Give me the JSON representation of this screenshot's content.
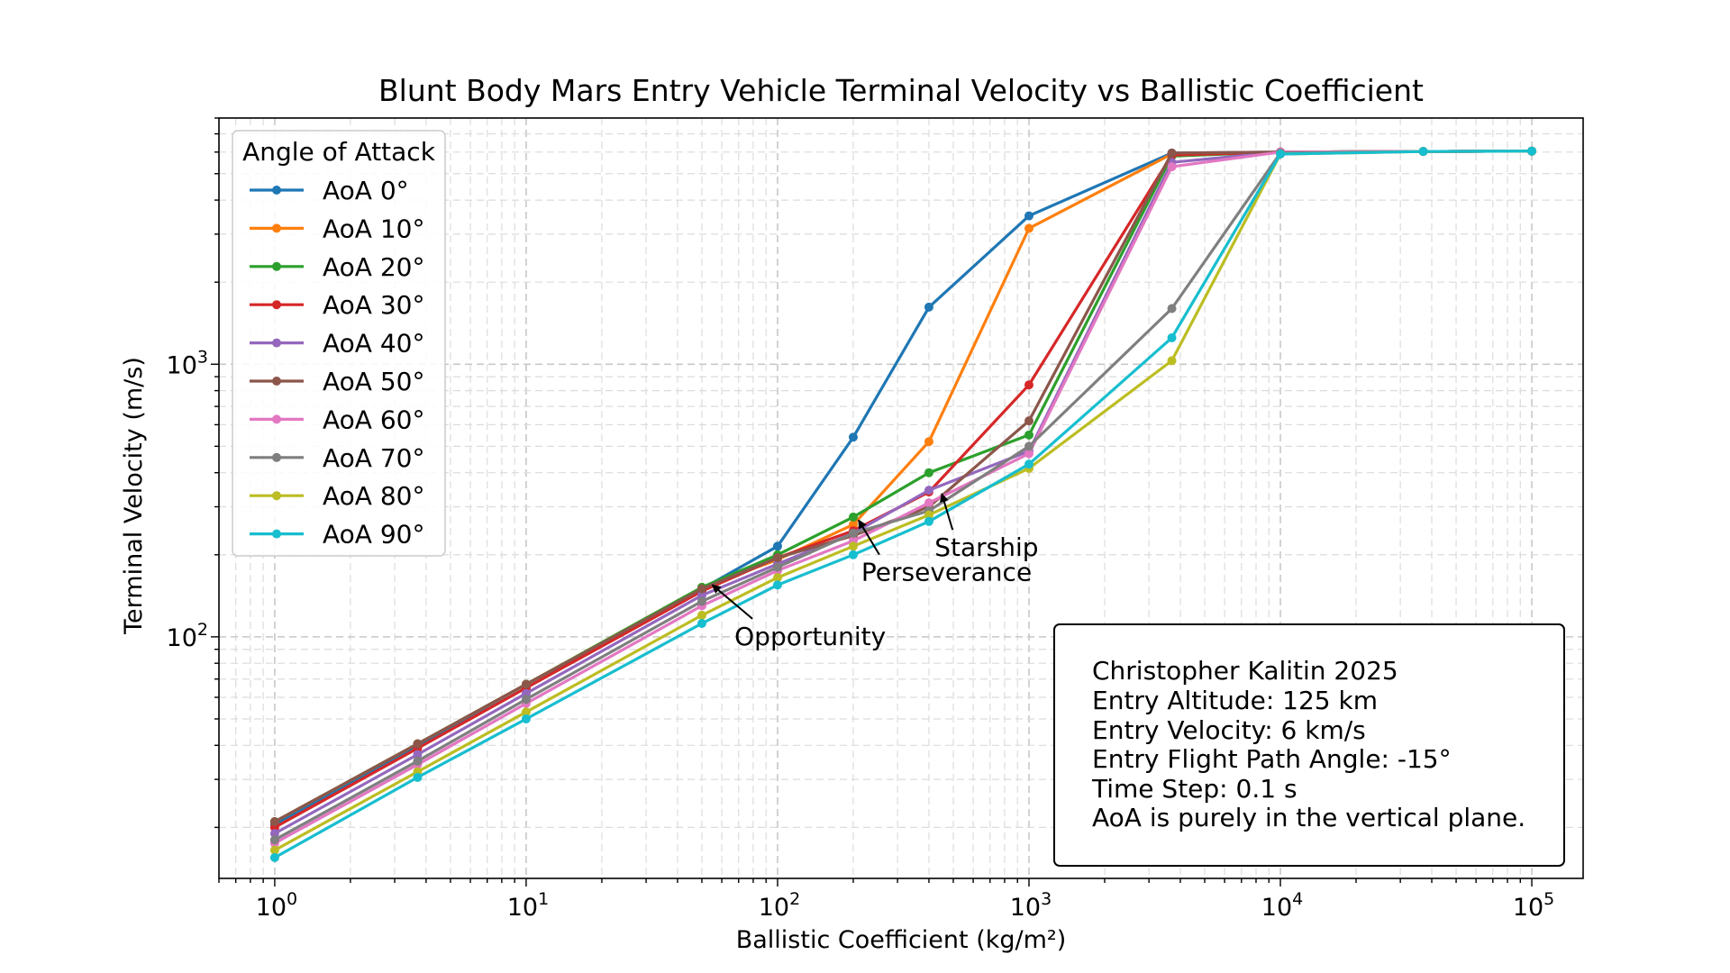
{
  "chart_data": {
    "type": "line",
    "title": "Blunt Body Mars Entry Vehicle Terminal Velocity vs Ballistic Coefficient",
    "xlabel": "Ballistic Coefficient (kg/m²)",
    "ylabel": "Terminal Velocity (m/s)",
    "xscale": "log",
    "yscale": "log",
    "xlim": [
      0.6,
      160000
    ],
    "ylim": [
      13,
      8000
    ],
    "grid": true,
    "x_ticks": [
      {
        "value": 1,
        "base": "10",
        "exp": "0"
      },
      {
        "value": 10,
        "base": "10",
        "exp": "1"
      },
      {
        "value": 100,
        "base": "10",
        "exp": "2"
      },
      {
        "value": 1000,
        "base": "10",
        "exp": "3"
      },
      {
        "value": 10000,
        "base": "10",
        "exp": "4"
      },
      {
        "value": 100000,
        "base": "10",
        "exp": "5"
      }
    ],
    "y_ticks": [
      {
        "value": 100,
        "base": "10",
        "exp": "2"
      },
      {
        "value": 1000,
        "base": "10",
        "exp": "3"
      }
    ],
    "legend": {
      "title": "Angle of Attack",
      "position": "upper-left"
    },
    "x": [
      1,
      3.7,
      10,
      50,
      100,
      200,
      400,
      1000,
      3700,
      10000,
      37000,
      100000
    ],
    "series": [
      {
        "name": "AoA 0°",
        "color": "#1f77b4",
        "values": [
          20.5,
          39.5,
          65,
          150,
          215,
          540,
          1620,
          3500,
          5950,
          6000,
          6030,
          6050
        ]
      },
      {
        "name": "AoA 10°",
        "color": "#ff7f0e",
        "values": [
          21,
          40.5,
          67,
          152,
          192,
          258,
          520,
          3150,
          5900,
          6000,
          6030,
          6050
        ]
      },
      {
        "name": "AoA 20°",
        "color": "#2ca02c",
        "values": [
          21,
          40.5,
          67,
          152,
          200,
          275,
          400,
          550,
          5800,
          6000,
          6030,
          6050
        ]
      },
      {
        "name": "AoA 30°",
        "color": "#d62728",
        "values": [
          20,
          39,
          65,
          147,
          195,
          245,
          340,
          840,
          5850,
          6000,
          6030,
          6050
        ]
      },
      {
        "name": "AoA 40°",
        "color": "#9467bd",
        "values": [
          19,
          37,
          62,
          142,
          185,
          240,
          345,
          480,
          5500,
          6000,
          6030,
          6050
        ]
      },
      {
        "name": "AoA 50°",
        "color": "#8c564b",
        "values": [
          21,
          40.5,
          67,
          150,
          195,
          235,
          300,
          620,
          5950,
          6000,
          6030,
          6050
        ]
      },
      {
        "name": "AoA 60°",
        "color": "#e377c2",
        "values": [
          17.5,
          34,
          57,
          130,
          175,
          225,
          310,
          470,
          5300,
          6000,
          6030,
          6050
        ]
      },
      {
        "name": "AoA 70°",
        "color": "#7f7f7f",
        "values": [
          18,
          35,
          59,
          135,
          180,
          240,
          290,
          500,
          1600,
          5950,
          6030,
          6050
        ]
      },
      {
        "name": "AoA 80°",
        "color": "#bcbd22",
        "values": [
          16.5,
          32,
          53,
          120,
          165,
          215,
          280,
          415,
          1030,
          5900,
          6030,
          6050
        ]
      },
      {
        "name": "AoA 90°",
        "color": "#17becf",
        "values": [
          15.5,
          30.5,
          50,
          112,
          155,
          200,
          265,
          430,
          1250,
          5900,
          6030,
          6050
        ]
      }
    ],
    "annotations": [
      {
        "text": "Opportunity",
        "text_x": 72,
        "text_y": 100,
        "point_x": 55,
        "point_y": 155
      },
      {
        "text": "Perseverance",
        "text_x": 230,
        "text_y": 172,
        "point_x": 210,
        "point_y": 268
      },
      {
        "text": "Starship",
        "text_x": 450,
        "text_y": 212,
        "point_x": 450,
        "point_y": 335
      }
    ],
    "info_box": {
      "position": "lower-right",
      "lines": [
        "Christopher Kalitin 2025",
        "Entry Altitude: 125 km",
        "Entry Velocity: 6 km/s",
        "Entry Flight Path Angle: -15°",
        "Time Step: 0.1 s",
        "AoA is purely in the vertical plane."
      ]
    }
  }
}
